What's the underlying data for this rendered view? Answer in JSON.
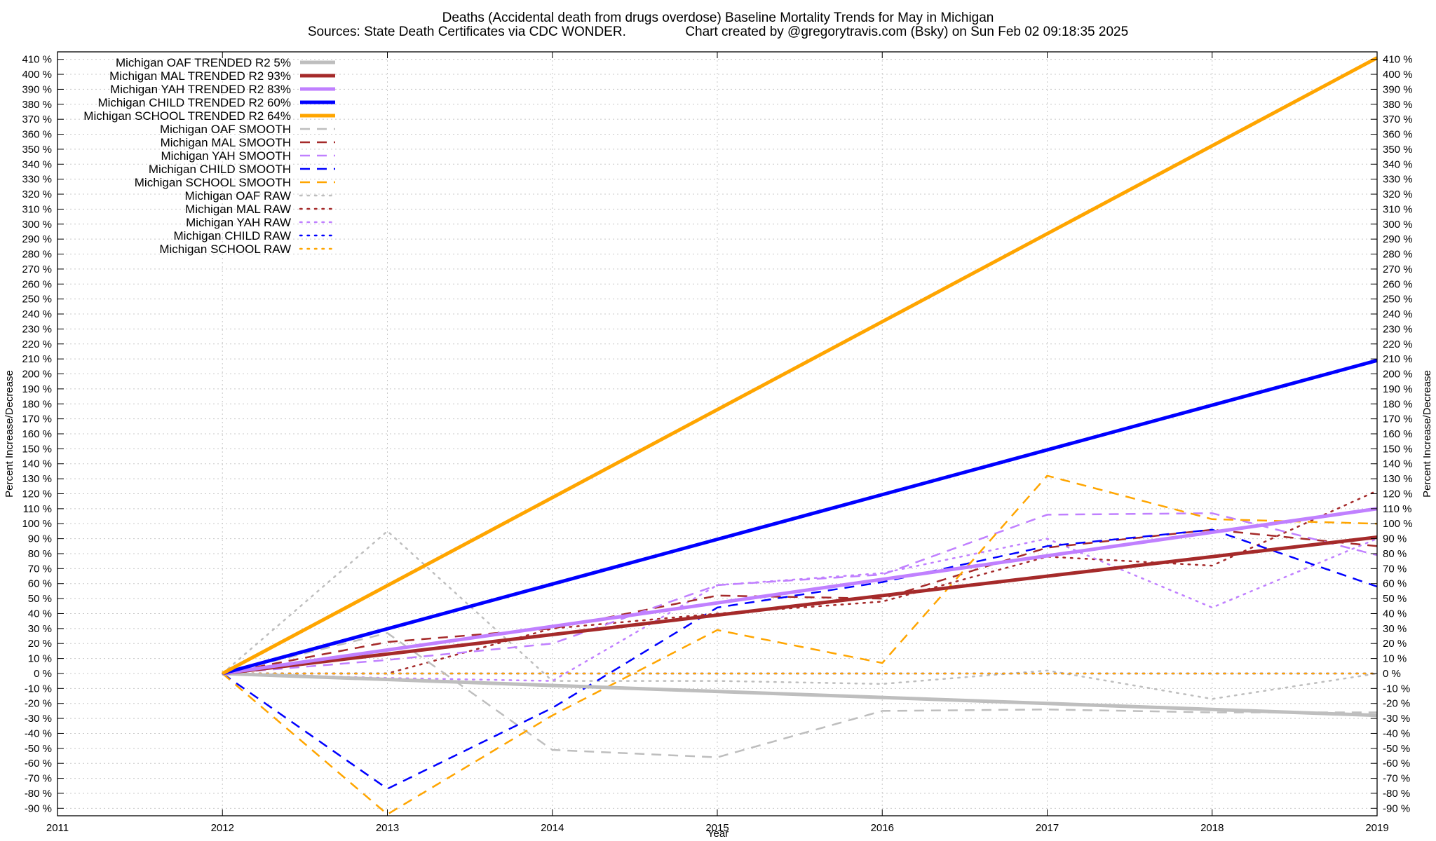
{
  "chart_data": {
    "type": "line",
    "title": "Deaths (Accidental death from drugs overdose)  Baseline Mortality Trends for May in Michigan",
    "subtitle": "Sources: State Death Certificates via CDC WONDER.                Chart created by @gregorytravis.com (Bsky) on Sun Feb 02 09:18:35 2025",
    "xlabel": "Year",
    "ylabel": "Percent Increase/Decrease",
    "xlim": [
      2011,
      2019
    ],
    "ylim": [
      -95,
      415
    ],
    "x_ticks": [
      2011,
      2012,
      2013,
      2014,
      2015,
      2016,
      2017,
      2018,
      2019
    ],
    "y_ticks": [
      -90,
      -80,
      -70,
      -60,
      -50,
      -40,
      -30,
      -20,
      -10,
      0,
      10,
      20,
      30,
      40,
      50,
      60,
      70,
      80,
      90,
      100,
      110,
      120,
      130,
      140,
      150,
      160,
      170,
      180,
      190,
      200,
      210,
      220,
      230,
      240,
      250,
      260,
      270,
      280,
      290,
      300,
      310,
      320,
      330,
      340,
      350,
      360,
      370,
      380,
      390,
      400,
      410
    ],
    "y_tick_suffix": " %",
    "grid": true,
    "right_axis_mirror": true,
    "legend_position": "top-left",
    "series": [
      {
        "name": "Michigan OAF TRENDED R2  5%",
        "style": "solid",
        "width": 5,
        "color": "#bebebe",
        "x": [
          2012,
          2019
        ],
        "y": [
          0,
          -28
        ]
      },
      {
        "name": "Michigan MAL TRENDED R2  93%",
        "style": "solid",
        "width": 5,
        "color": "#a52a2a",
        "x": [
          2012,
          2019
        ],
        "y": [
          0,
          91
        ]
      },
      {
        "name": "Michigan YAH TRENDED R2  83%",
        "style": "solid",
        "width": 5,
        "color": "#c080ff",
        "x": [
          2012,
          2019
        ],
        "y": [
          0,
          110
        ]
      },
      {
        "name": "Michigan CHILD TRENDED R2  60%",
        "style": "solid",
        "width": 5,
        "color": "#0000ff",
        "x": [
          2012,
          2019
        ],
        "y": [
          0,
          209
        ]
      },
      {
        "name": "Michigan SCHOOL TRENDED R2  64%",
        "style": "solid",
        "width": 5,
        "color": "#ffa500",
        "x": [
          2012,
          2019
        ],
        "y": [
          0,
          411
        ]
      },
      {
        "name": "Michigan OAF SMOOTH",
        "style": "dashed",
        "width": 2.5,
        "color": "#bebebe",
        "x": [
          2012,
          2013,
          2014,
          2015,
          2016,
          2017,
          2018,
          2019
        ],
        "y": [
          0,
          27,
          -51,
          -56,
          -25,
          -24,
          -26,
          -26
        ]
      },
      {
        "name": "Michigan MAL SMOOTH",
        "style": "dashed",
        "width": 2.5,
        "color": "#a52a2a",
        "x": [
          2012,
          2013,
          2014,
          2015,
          2016,
          2017,
          2018,
          2019
        ],
        "y": [
          0,
          21,
          30,
          52,
          50,
          84,
          96,
          85
        ]
      },
      {
        "name": "Michigan YAH SMOOTH",
        "style": "dashed",
        "width": 2.5,
        "color": "#c080ff",
        "x": [
          2012,
          2013,
          2014,
          2015,
          2016,
          2017,
          2018,
          2019
        ],
        "y": [
          0,
          9,
          20,
          59,
          66,
          106,
          107,
          79
        ]
      },
      {
        "name": "Michigan CHILD SMOOTH",
        "style": "dashed",
        "width": 2.5,
        "color": "#0000ff",
        "x": [
          2012,
          2013,
          2014,
          2015,
          2016,
          2017,
          2018,
          2019
        ],
        "y": [
          0,
          -77,
          -23,
          44,
          61,
          85,
          96,
          58
        ]
      },
      {
        "name": "Michigan SCHOOL SMOOTH",
        "style": "dashed",
        "width": 2.5,
        "color": "#ffa500",
        "x": [
          2012,
          2013,
          2014,
          2015,
          2016,
          2017,
          2018,
          2019
        ],
        "y": [
          0,
          -94,
          -28,
          29,
          7,
          132,
          103,
          100
        ]
      },
      {
        "name": "Michigan OAF RAW",
        "style": "dotted",
        "width": 2.5,
        "color": "#bebebe",
        "x": [
          2012,
          2013,
          2014,
          2015,
          2016,
          2017,
          2018,
          2019
        ],
        "y": [
          0,
          95,
          -5,
          -5,
          -7,
          2,
          -17,
          0
        ]
      },
      {
        "name": "Michigan MAL RAW",
        "style": "dotted",
        "width": 2.5,
        "color": "#a52a2a",
        "x": [
          2012,
          2013,
          2014,
          2015,
          2016,
          2017,
          2018,
          2019
        ],
        "y": [
          0,
          0,
          30,
          40,
          48,
          78,
          72,
          122
        ]
      },
      {
        "name": "Michigan YAH RAW",
        "style": "dotted",
        "width": 2.5,
        "color": "#c080ff",
        "x": [
          2012,
          2013,
          2014,
          2015,
          2016,
          2017,
          2018,
          2019
        ],
        "y": [
          0,
          -3,
          -5,
          59,
          67,
          90,
          44,
          90
        ]
      },
      {
        "name": "Michigan CHILD RAW",
        "style": "dotted",
        "width": 2.5,
        "color": "#0000ff",
        "x": [
          2012,
          2013,
          2014,
          2015,
          2016,
          2017,
          2018,
          2019
        ],
        "y": [
          0,
          0,
          0,
          0,
          0,
          0,
          0,
          0
        ]
      },
      {
        "name": "Michigan SCHOOL RAW",
        "style": "dotted",
        "width": 2.5,
        "color": "#ffa500",
        "x": [
          2012,
          2013,
          2014,
          2015,
          2016,
          2017,
          2018,
          2019
        ],
        "y": [
          0,
          0,
          0,
          0,
          0,
          0,
          0,
          0
        ]
      }
    ]
  }
}
